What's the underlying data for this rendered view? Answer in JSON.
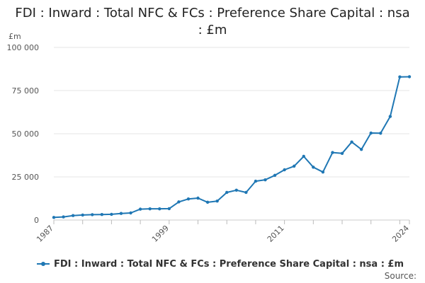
{
  "title": "FDI : Inward : Total NFC & FCs : Preference Share Capital : nsa : £m",
  "source_label": "Source:",
  "chart_data": {
    "type": "line",
    "title": "FDI : Inward : Total NFC & FCs : Preference Share Capital : nsa : £m",
    "ylabel": "£m",
    "xlabel": "",
    "xlim": [
      1987,
      2024
    ],
    "ylim": [
      0,
      100000
    ],
    "y_ticks": [
      {
        "value": 0,
        "label": "0"
      },
      {
        "value": 25000,
        "label": "25 000"
      },
      {
        "value": 50000,
        "label": "50 000"
      },
      {
        "value": 75000,
        "label": "75 000"
      },
      {
        "value": 100000,
        "label": "100 000"
      }
    ],
    "x_tick_labels": [
      {
        "value": 1987,
        "label": "1987"
      },
      {
        "value": 1999,
        "label": "1999"
      },
      {
        "value": 2011,
        "label": "2011"
      },
      {
        "value": 2024,
        "label": "2024"
      }
    ],
    "grid": "horizontal",
    "legend_position": "bottom-left",
    "series": [
      {
        "name": "FDI : Inward : Total NFC & FCs : Preference Share Capital : nsa : £m",
        "color": "#1f77b4",
        "x": [
          1987,
          1988,
          1989,
          1990,
          1991,
          1992,
          1993,
          1994,
          1995,
          1996,
          1997,
          1998,
          1999,
          2000,
          2001,
          2002,
          2003,
          2004,
          2005,
          2006,
          2007,
          2008,
          2009,
          2010,
          2011,
          2012,
          2013,
          2014,
          2015,
          2016,
          2017,
          2018,
          2019,
          2020,
          2021,
          2022,
          2023,
          2024
        ],
        "values": [
          1500,
          1800,
          2600,
          2900,
          3100,
          3200,
          3300,
          3800,
          4100,
          6300,
          6500,
          6500,
          6600,
          10500,
          12200,
          12700,
          10300,
          11000,
          16000,
          17300,
          16000,
          22500,
          23300,
          25900,
          29100,
          31200,
          36900,
          30600,
          27800,
          39100,
          38600,
          45200,
          40900,
          50400,
          50300,
          60000,
          82900,
          83000
        ]
      }
    ]
  }
}
